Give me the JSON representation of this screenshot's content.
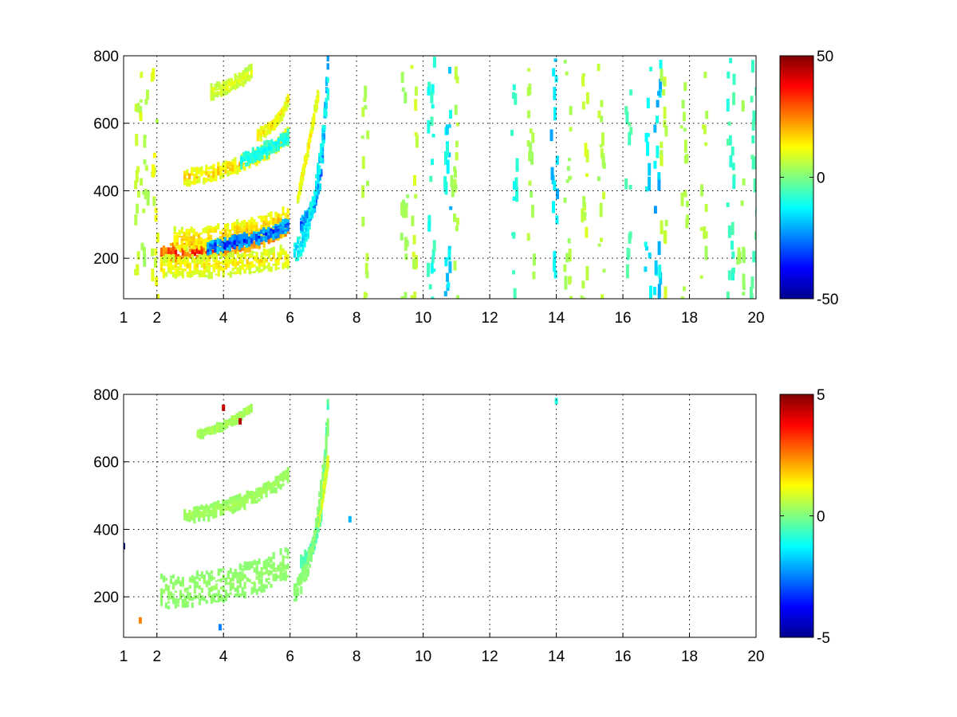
{
  "chart_data": [
    {
      "type": "heatmap",
      "panel": "top",
      "title": "",
      "xlabel": "",
      "ylabel": "",
      "xlim": [
        1,
        20
      ],
      "ylim": [
        80,
        800
      ],
      "x_ticks": [
        1,
        2,
        4,
        6,
        8,
        10,
        12,
        14,
        16,
        18,
        20
      ],
      "x_tick_labels": [
        "1",
        "2",
        "4",
        "6",
        "8",
        "10",
        "12",
        "14",
        "16",
        "18",
        "20"
      ],
      "y_ticks": [
        200,
        400,
        600,
        800
      ],
      "y_tick_labels": [
        "200",
        "400",
        "600",
        "800"
      ],
      "grid": true,
      "colormap": "jet",
      "clim": [
        -50,
        50
      ],
      "colorbar_ticks": [
        -50,
        0,
        50
      ],
      "colorbar_tick_labels": [
        "-50",
        "0",
        "50"
      ],
      "features": [
        {
          "type": "curve",
          "x": [
            2.1,
            2.5,
            3,
            3.5,
            4,
            4.5,
            5,
            5.5,
            5.9
          ],
          "y": [
            215,
            215,
            218,
            225,
            235,
            245,
            258,
            275,
            295
          ],
          "value": 42,
          "width": 22
        },
        {
          "type": "curve",
          "x": [
            2.5,
            3,
            3.5,
            4,
            4.5,
            5,
            5.5,
            5.9
          ],
          "y": [
            255,
            255,
            260,
            268,
            278,
            290,
            305,
            320
          ],
          "value": 22,
          "width": 26
        },
        {
          "type": "curve",
          "x": [
            3.5,
            4,
            4.5,
            5,
            5.5,
            5.9
          ],
          "y": [
            230,
            240,
            250,
            262,
            278,
            300
          ],
          "value": -42,
          "width": 14
        },
        {
          "type": "curve",
          "x": [
            2.1,
            3,
            4,
            5,
            5.9
          ],
          "y": [
            175,
            175,
            180,
            190,
            205
          ],
          "value": 18,
          "width": 26
        },
        {
          "type": "curve",
          "x": [
            2.8,
            3.5,
            4,
            4.5,
            5,
            5.5,
            5.9
          ],
          "y": [
            440,
            450,
            465,
            480,
            500,
            530,
            560
          ],
          "value": 22,
          "width": 18
        },
        {
          "type": "curve",
          "x": [
            4.5,
            5,
            5.5,
            5.9
          ],
          "y": [
            490,
            510,
            535,
            560
          ],
          "value": -15,
          "width": 16
        },
        {
          "type": "curve",
          "x": [
            5,
            5.5,
            5.8,
            5.9
          ],
          "y": [
            560,
            600,
            640,
            670
          ],
          "value": 20,
          "width": 12
        },
        {
          "type": "curve",
          "x": [
            3.6,
            4.0,
            4.4,
            4.8
          ],
          "y": [
            690,
            705,
            725,
            750
          ],
          "value": 14,
          "width": 16
        },
        {
          "type": "curve",
          "x": [
            6.3,
            6.5,
            6.7,
            6.9,
            7.0,
            7.1
          ],
          "y": [
            300,
            320,
            360,
            450,
            600,
            780
          ],
          "value": -38,
          "width": 18
        },
        {
          "type": "curve",
          "x": [
            6.2,
            6.35,
            6.5,
            6.65,
            6.8
          ],
          "y": [
            380,
            450,
            520,
            600,
            680
          ],
          "value": 18,
          "width": 14
        },
        {
          "type": "curve",
          "x": [
            6.1,
            6.3,
            6.5,
            6.7,
            6.9,
            7.1
          ],
          "y": [
            215,
            240,
            290,
            380,
            520,
            700
          ],
          "value": -22,
          "width": 24
        }
      ],
      "scatter_columns": [
        {
          "x": 1.4,
          "value": 8
        },
        {
          "x": 1.6,
          "value": 5
        },
        {
          "x": 1.9,
          "value": 10
        },
        {
          "x": 8.2,
          "value": 6
        },
        {
          "x": 9.4,
          "value": 4
        },
        {
          "x": 9.7,
          "value": 8
        },
        {
          "x": 10.2,
          "value": -10
        },
        {
          "x": 10.7,
          "value": -18
        },
        {
          "x": 10.9,
          "value": 6
        },
        {
          "x": 12.7,
          "value": -10
        },
        {
          "x": 13.2,
          "value": 5
        },
        {
          "x": 13.9,
          "value": -18
        },
        {
          "x": 14.3,
          "value": 5
        },
        {
          "x": 14.8,
          "value": 8
        },
        {
          "x": 15.3,
          "value": 6
        },
        {
          "x": 16.1,
          "value": -6
        },
        {
          "x": 16.7,
          "value": -16
        },
        {
          "x": 17.0,
          "value": -20
        },
        {
          "x": 17.2,
          "value": 8
        },
        {
          "x": 17.8,
          "value": 5
        },
        {
          "x": 18.4,
          "value": 6
        },
        {
          "x": 19.2,
          "value": -8
        },
        {
          "x": 19.5,
          "value": 4
        },
        {
          "x": 19.9,
          "value": -6
        }
      ]
    },
    {
      "type": "heatmap",
      "panel": "bottom",
      "title": "",
      "xlabel": "",
      "ylabel": "",
      "xlim": [
        1,
        20
      ],
      "ylim": [
        80,
        800
      ],
      "x_ticks": [
        1,
        2,
        4,
        6,
        8,
        10,
        12,
        14,
        16,
        18,
        20
      ],
      "x_tick_labels": [
        "1",
        "2",
        "4",
        "6",
        "8",
        "10",
        "12",
        "14",
        "16",
        "18",
        "20"
      ],
      "y_ticks": [
        200,
        400,
        600,
        800
      ],
      "y_tick_labels": [
        "200",
        "400",
        "600",
        "800"
      ],
      "grid": true,
      "colormap": "jet",
      "clim": [
        -5,
        5
      ],
      "colorbar_ticks": [
        -5,
        0,
        5
      ],
      "colorbar_tick_labels": [
        "-5",
        "0",
        "5"
      ],
      "features": [
        {
          "type": "curve",
          "x": [
            2.1,
            2.5,
            3,
            3.5,
            4,
            4.5,
            5,
            5.5,
            5.9
          ],
          "y": [
            215,
            215,
            220,
            228,
            238,
            248,
            260,
            278,
            300
          ],
          "value": 0.3,
          "width": 40
        },
        {
          "type": "curve",
          "x": [
            2.8,
            3.5,
            4,
            4.5,
            5,
            5.5,
            5.9
          ],
          "y": [
            440,
            450,
            465,
            480,
            500,
            530,
            560
          ],
          "value": 0.5,
          "width": 16
        },
        {
          "type": "curve",
          "x": [
            3.2,
            3.8,
            4.4,
            4.8
          ],
          "y": [
            680,
            700,
            730,
            760
          ],
          "value": 0.6,
          "width": 8
        },
        {
          "type": "curve",
          "x": [
            6.3,
            6.5,
            6.7,
            6.9,
            7.0,
            7.1
          ],
          "y": [
            300,
            320,
            360,
            450,
            600,
            760
          ],
          "value": -0.8,
          "width": 18
        },
        {
          "type": "curve",
          "x": [
            6.8,
            6.95,
            7.1
          ],
          "y": [
            420,
            500,
            600
          ],
          "value": 1.6,
          "width": 12
        },
        {
          "type": "curve",
          "x": [
            6.1,
            6.3,
            6.5,
            6.7,
            6.9,
            7.1
          ],
          "y": [
            215,
            240,
            290,
            380,
            520,
            700
          ],
          "value": 0.2,
          "width": 22
        }
      ],
      "points": [
        {
          "x": 1.5,
          "y": 130,
          "value": 2.5
        },
        {
          "x": 4.5,
          "y": 720,
          "value": 4.5
        },
        {
          "x": 4.0,
          "y": 760,
          "value": 4.2
        },
        {
          "x": 3.9,
          "y": 110,
          "value": -2.5
        },
        {
          "x": 7.8,
          "y": 430,
          "value": -2.0
        },
        {
          "x": 14.0,
          "y": 780,
          "value": -1.0
        },
        {
          "x": 1.0,
          "y": 350,
          "value": -5.0
        }
      ]
    }
  ]
}
